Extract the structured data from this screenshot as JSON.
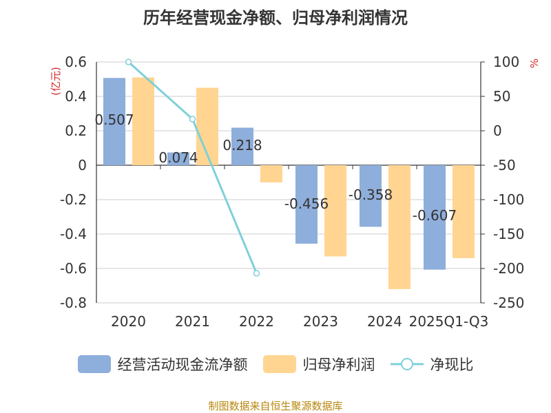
{
  "title": "历年经营现金净额、归母净利润情况",
  "source": "制图数据来自恒生聚源数据库",
  "chart_data": {
    "type": "bar",
    "categories": [
      "2020",
      "2021",
      "2022",
      "2023",
      "2024",
      "2025Q1-Q3"
    ],
    "series": [
      {
        "name": "经营活动现金流净额",
        "values": [
          0.507,
          0.074,
          0.218,
          -0.456,
          -0.358,
          -0.607
        ],
        "color": "#8eaedb",
        "axis": "left",
        "labels": [
          "0.507",
          "0.074",
          "0.218",
          "-0.456",
          "-0.358",
          "-0.607"
        ]
      },
      {
        "name": "归母净利润",
        "values": [
          0.51,
          0.45,
          -0.1,
          -0.53,
          -0.72,
          -0.54
        ],
        "color": "#ffd591",
        "axis": "left"
      },
      {
        "name": "净现比",
        "type": "line",
        "values": [
          100,
          17,
          -207,
          null,
          null,
          null
        ],
        "color": "#7fd0d8",
        "axis": "right"
      }
    ],
    "y_left": {
      "label": "(亿元)",
      "ylim": [
        -0.8,
        0.6
      ],
      "ticks": [
        0.6,
        0.4,
        0.2,
        0,
        -0.2,
        -0.4,
        -0.6,
        -0.8
      ],
      "tick_labels": [
        "0.6",
        "0.4",
        "0.2",
        "0",
        "-0.2",
        "-0.4",
        "-0.6",
        "-0.8"
      ]
    },
    "y_right": {
      "label": "%",
      "ylim": [
        -250,
        100
      ],
      "ticks": [
        100,
        50,
        0,
        -50,
        -100,
        -150,
        -200,
        -250
      ],
      "tick_labels": [
        "100",
        "50",
        "0",
        "-50",
        "-100",
        "-150",
        "-200",
        "-250"
      ]
    },
    "grid": true,
    "legend": "bottom"
  }
}
